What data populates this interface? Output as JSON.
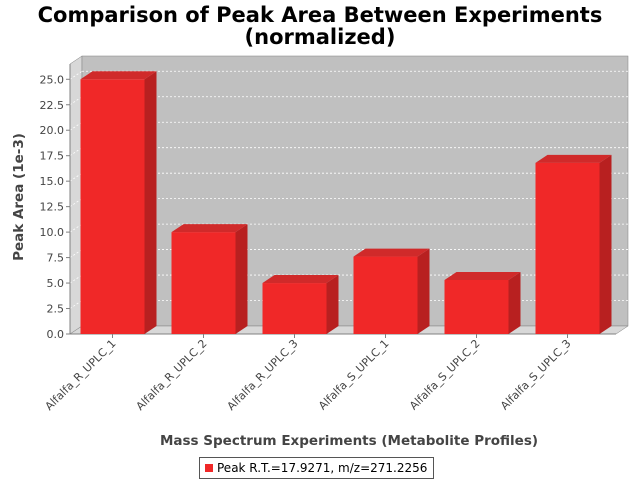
{
  "chart_data": {
    "type": "bar",
    "title_line1": "Comparison of Peak Area Between Experiments",
    "title_line2": "(normalized)",
    "xlabel": "Mass Spectrum Experiments (Metabolite Profiles)",
    "ylabel": "Peak Area (1e-3)",
    "categories": [
      "Alfalfa_R_UPLC_1",
      "Alfalfa_R_UPLC_2",
      "Alfalfa_R_UPLC_3",
      "Alfalfa_S_UPLC_1",
      "Alfalfa_S_UPLC_2",
      "Alfalfa_S_UPLC_3"
    ],
    "series": [
      {
        "name": "Peak R.T.=17.9271, m/z=271.2256",
        "values": [
          25.0,
          10.0,
          5.0,
          7.6,
          5.3,
          16.8
        ]
      }
    ],
    "ylim": [
      0,
      26.5
    ],
    "yticks": [
      "0.0",
      "2.5",
      "5.0",
      "7.5",
      "10.0",
      "12.5",
      "15.0",
      "17.5",
      "20.0",
      "22.5",
      "25.0"
    ],
    "grid": true,
    "legend_position": "bottom",
    "colors": {
      "bar_front": "#f02828",
      "bar_side": "#b82020",
      "bar_top": "#d02a2a",
      "plot_back": "#c0c0c0",
      "plot_floor": "#d8d8d8"
    }
  }
}
